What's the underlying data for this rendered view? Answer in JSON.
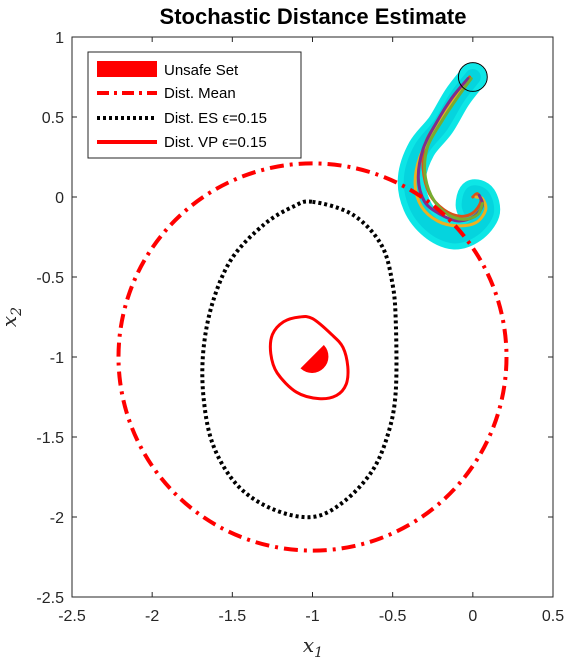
{
  "chart_data": {
    "type": "line",
    "title": "Stochastic Distance Estimate",
    "xlabel": "x",
    "xlabel_sub": "1",
    "ylabel": "x",
    "ylabel_sub": "2",
    "xlim": [
      -2.5,
      0.5
    ],
    "ylim": [
      -2.5,
      1
    ],
    "xticks": [
      -2.5,
      -2,
      -1.5,
      -1,
      -0.5,
      0,
      0.5
    ],
    "xtick_labels": [
      "-2.5",
      "-2",
      "-1.5",
      "-1",
      "-0.5",
      "0",
      "0.5"
    ],
    "yticks": [
      -2.5,
      -2,
      -1.5,
      -1,
      -0.5,
      0,
      0.5,
      1
    ],
    "ytick_labels": [
      "-2.5",
      "-2",
      "-1.5",
      "-1",
      "-0.5",
      "0",
      "0.5",
      "1"
    ],
    "grid": false,
    "legend": {
      "placement": "top-left",
      "entries": [
        {
          "label": "Unsafe Set",
          "style": "patch",
          "color": "#ff0000"
        },
        {
          "label": "Dist. Mean",
          "style": "dashdot",
          "color": "#ff0000"
        },
        {
          "label": "Dist. ES ϵ=0.15",
          "style": "dotted",
          "color": "#000000"
        },
        {
          "label": "Dist. VP ϵ=0.15",
          "style": "solid",
          "color": "#ff0000"
        }
      ]
    },
    "series": [
      {
        "name": "Unsafe Set",
        "shape": "half-disk",
        "center": [
          -1.0,
          -1.0
        ],
        "radius": 0.1,
        "color": "#ff0000"
      },
      {
        "name": "Dist. Mean",
        "shape": "circle",
        "center": [
          -1.0,
          -1.0
        ],
        "radius": 1.21,
        "color": "#ff0000"
      },
      {
        "name": "Dist. ES ϵ=0.15",
        "shape": "closed-curve",
        "color": "#000000",
        "points": [
          [
            -1.0,
            -0.03
          ],
          [
            -0.75,
            -0.11
          ],
          [
            -0.57,
            -0.3
          ],
          [
            -0.5,
            -0.55
          ],
          [
            -0.48,
            -0.8
          ],
          [
            -0.48,
            -1.2
          ],
          [
            -0.52,
            -1.45
          ],
          [
            -0.62,
            -1.7
          ],
          [
            -0.8,
            -1.9
          ],
          [
            -1.0,
            -2.0
          ],
          [
            -1.25,
            -1.95
          ],
          [
            -1.47,
            -1.8
          ],
          [
            -1.62,
            -1.55
          ],
          [
            -1.68,
            -1.25
          ],
          [
            -1.68,
            -0.95
          ],
          [
            -1.62,
            -0.65
          ],
          [
            -1.5,
            -0.38
          ],
          [
            -1.3,
            -0.17
          ],
          [
            -1.12,
            -0.06
          ]
        ]
      },
      {
        "name": "Dist. VP ϵ=0.15",
        "shape": "closed-curve",
        "color": "#ff0000",
        "points": [
          [
            -1.0,
            -0.76
          ],
          [
            -0.88,
            -0.86
          ],
          [
            -0.81,
            -0.94
          ],
          [
            -0.78,
            -1.06
          ],
          [
            -0.79,
            -1.17
          ],
          [
            -0.85,
            -1.24
          ],
          [
            -0.96,
            -1.26
          ],
          [
            -1.1,
            -1.22
          ],
          [
            -1.22,
            -1.1
          ],
          [
            -1.26,
            -0.98
          ],
          [
            -1.25,
            -0.86
          ],
          [
            -1.18,
            -0.78
          ],
          [
            -1.08,
            -0.75
          ]
        ]
      },
      {
        "name": "trajectory-samples",
        "shape": "band",
        "color": "#00e5e5",
        "points": [
          [
            0.0,
            0.75
          ],
          [
            -0.1,
            0.62
          ],
          [
            -0.2,
            0.45
          ],
          [
            -0.32,
            0.3
          ],
          [
            -0.38,
            0.12
          ],
          [
            -0.35,
            -0.05
          ],
          [
            -0.25,
            -0.18
          ],
          [
            -0.12,
            -0.24
          ],
          [
            0.0,
            -0.2
          ],
          [
            0.08,
            -0.1
          ],
          [
            0.06,
            0.0
          ],
          [
            0.0,
            0.02
          ],
          [
            -0.02,
            -0.05
          ],
          [
            0.0,
            -0.1
          ]
        ]
      },
      {
        "name": "trajectory-a",
        "shape": "path",
        "color": "#d95319",
        "points": [
          [
            -0.02,
            0.75
          ],
          [
            -0.1,
            0.65
          ],
          [
            -0.2,
            0.5
          ],
          [
            -0.29,
            0.35
          ],
          [
            -0.31,
            0.18
          ],
          [
            -0.27,
            0.02
          ],
          [
            -0.18,
            -0.08
          ],
          [
            -0.08,
            -0.12
          ],
          [
            0.0,
            -0.1
          ],
          [
            0.05,
            -0.03
          ],
          [
            0.03,
            0.02
          ],
          [
            0.0,
            0.0
          ]
        ]
      },
      {
        "name": "trajectory-b",
        "shape": "path",
        "color": "#edb120",
        "points": [
          [
            -0.02,
            0.73
          ],
          [
            -0.12,
            0.6
          ],
          [
            -0.24,
            0.42
          ],
          [
            -0.33,
            0.25
          ],
          [
            -0.36,
            0.08
          ],
          [
            -0.32,
            -0.06
          ],
          [
            -0.22,
            -0.15
          ],
          [
            -0.1,
            -0.18
          ],
          [
            0.02,
            -0.16
          ],
          [
            0.08,
            -0.08
          ],
          [
            0.06,
            -0.01
          ],
          [
            0.02,
            0.0
          ]
        ]
      },
      {
        "name": "trajectory-c",
        "shape": "path",
        "color": "#7e2f8e",
        "points": [
          [
            -0.03,
            0.74
          ],
          [
            -0.13,
            0.62
          ],
          [
            -0.23,
            0.46
          ],
          [
            -0.31,
            0.3
          ],
          [
            -0.34,
            0.12
          ],
          [
            -0.3,
            -0.03
          ],
          [
            -0.2,
            -0.11
          ],
          [
            -0.09,
            -0.15
          ],
          [
            0.01,
            -0.12
          ],
          [
            0.06,
            -0.05
          ],
          [
            0.04,
            0.01
          ]
        ]
      },
      {
        "name": "trajectory-d",
        "shape": "path",
        "color": "#77ac30",
        "points": [
          [
            -0.01,
            0.74
          ],
          [
            -0.09,
            0.63
          ],
          [
            -0.19,
            0.48
          ],
          [
            -0.28,
            0.32
          ],
          [
            -0.3,
            0.16
          ],
          [
            -0.26,
            0.01
          ],
          [
            -0.17,
            -0.1
          ],
          [
            -0.06,
            -0.14
          ],
          [
            0.03,
            -0.11
          ],
          [
            0.06,
            -0.04
          ]
        ]
      },
      {
        "name": "initial-state",
        "shape": "circle",
        "center": [
          0.0,
          0.75
        ],
        "radius": 0.09,
        "color": "#000000"
      }
    ]
  }
}
